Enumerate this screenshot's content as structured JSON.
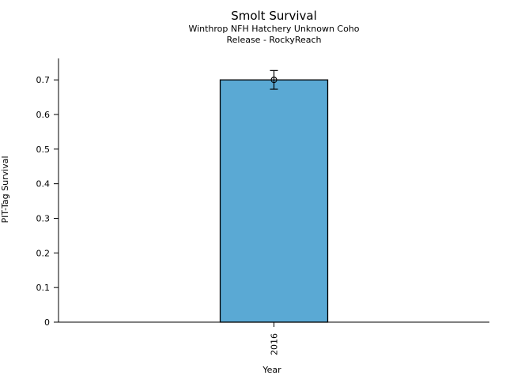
{
  "figure": {
    "title": "Smolt Survival",
    "subtitle_line1": "Winthrop NFH Hatchery Unknown Coho",
    "subtitle_line2": "Release - RockyReach"
  },
  "chart_data": {
    "type": "bar",
    "title": "Smolt Survival",
    "subtitle": [
      "Winthrop NFH Hatchery Unknown Coho",
      "Release - RockyReach"
    ],
    "xlabel": "Year",
    "ylabel": "PIT-Tag Survival",
    "categories": [
      "2016"
    ],
    "values": [
      0.7
    ],
    "error_low": [
      0.673
    ],
    "error_high": [
      0.727
    ],
    "ylim": [
      0,
      0.762
    ],
    "yticks": [
      0,
      0.1,
      0.2,
      0.3,
      0.4,
      0.5,
      0.6,
      0.7
    ],
    "ytick_labels": [
      "0",
      "0.1",
      "0.2",
      "0.3",
      "0.4",
      "0.5",
      "0.6",
      "0.7"
    ],
    "grid": false,
    "legend": "none",
    "bar_color": "#5AA9D4",
    "bar_edge_color": "#000000",
    "errorbar_color": "#000000",
    "axis_color": "#000000"
  }
}
